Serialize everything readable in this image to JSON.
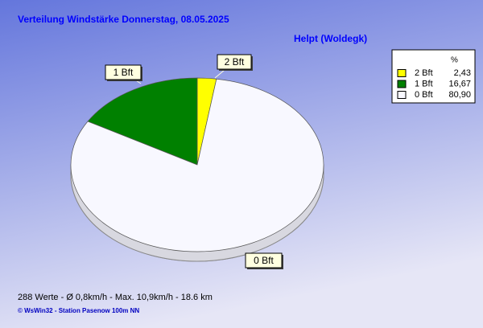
{
  "chart_data": {
    "type": "pie",
    "title": "Verteilung Windstärke  Donnerstag, 08.05.2025",
    "subtitle": "Helpt (Woldegk)",
    "legend_header": "%",
    "categories": [
      "2 Bft",
      "1 Bft",
      "0 Bft"
    ],
    "values": [
      2.43,
      16.67,
      80.9
    ],
    "value_labels": [
      "2,43",
      "16,67",
      "80,90"
    ],
    "colors": [
      "#ffff00",
      "#008000",
      "#f8f8ff"
    ],
    "legend": "top-right",
    "footer": "288 Werte   -   Ø 0,8km/h  -  Max. 10,9km/h   -   18.6 km",
    "credit": "© WsWin32  -  Station Pasenow 100m NN"
  }
}
